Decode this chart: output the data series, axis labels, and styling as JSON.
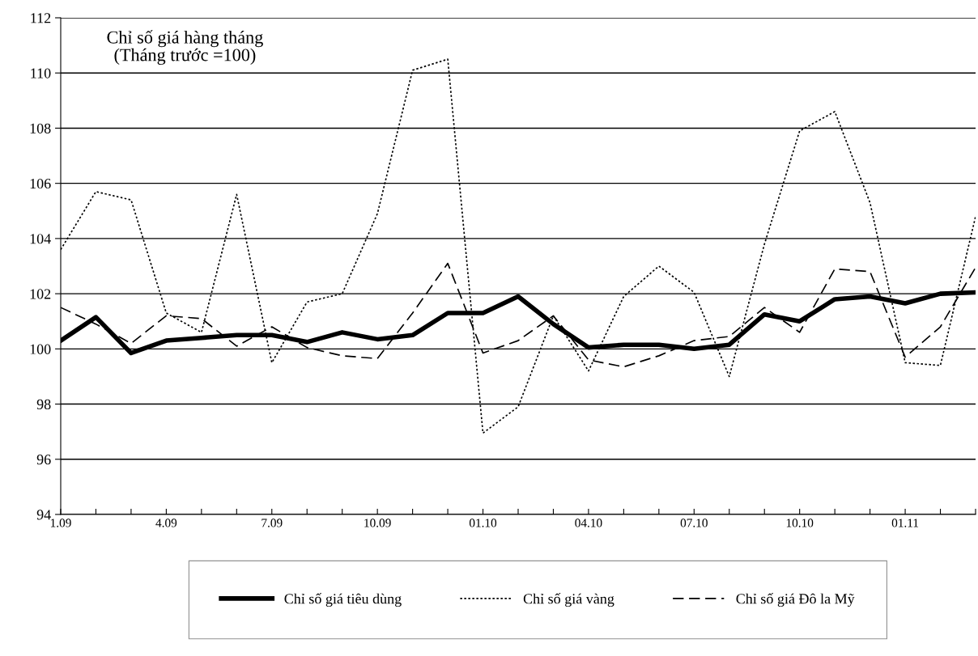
{
  "chart_data": {
    "type": "line",
    "title": "Chỉ số giá hàng tháng\n(Tháng trước =100)",
    "categories": [
      "1.09",
      null,
      null,
      "4.09",
      null,
      null,
      "7.09",
      null,
      null,
      "10.09",
      null,
      null,
      "01.10",
      null,
      null,
      "04.10",
      null,
      null,
      "07.10",
      null,
      null,
      "10.10",
      null,
      null,
      "01.11",
      null,
      null
    ],
    "series": [
      {
        "name": "Chỉ số giá tiêu dùng",
        "color": "#000000",
        "line_style": "solid",
        "values": [
          100.3,
          101.15,
          99.85,
          100.3,
          100.4,
          100.5,
          100.5,
          100.25,
          100.6,
          100.35,
          100.5,
          101.3,
          101.3,
          101.9,
          100.9,
          100.05,
          100.15,
          100.15,
          100.0,
          100.15,
          101.25,
          101.0,
          101.8,
          101.9,
          101.65,
          102.0,
          102.05
        ]
      },
      {
        "name": "Chỉ số giá vàng",
        "color": "#000000",
        "line_style": "dotted",
        "values": [
          103.6,
          105.7,
          105.4,
          101.3,
          100.6,
          105.6,
          99.5,
          101.7,
          102.0,
          104.9,
          110.1,
          110.5,
          96.95,
          97.9,
          101.2,
          99.2,
          101.9,
          103.0,
          102.05,
          99.0,
          103.8,
          107.9,
          108.6,
          105.3,
          99.5,
          99.4,
          104.8
        ]
      },
      {
        "name": "Chỉ số giá Đô la Mỹ",
        "color": "#000000",
        "line_style": "dashed",
        "values": [
          101.5,
          100.9,
          100.2,
          101.2,
          101.1,
          100.1,
          100.8,
          100.05,
          99.75,
          99.65,
          101.3,
          103.1,
          99.85,
          100.3,
          101.2,
          99.6,
          99.35,
          99.75,
          100.3,
          100.45,
          101.5,
          100.6,
          102.9,
          102.8,
          99.7,
          100.8,
          102.95
        ]
      }
    ],
    "ylim": [
      94,
      112
    ],
    "yticks": [
      94,
      96,
      98,
      100,
      102,
      104,
      106,
      108,
      110,
      112
    ],
    "grid": "y",
    "legend": "bottom",
    "marker": "none"
  }
}
